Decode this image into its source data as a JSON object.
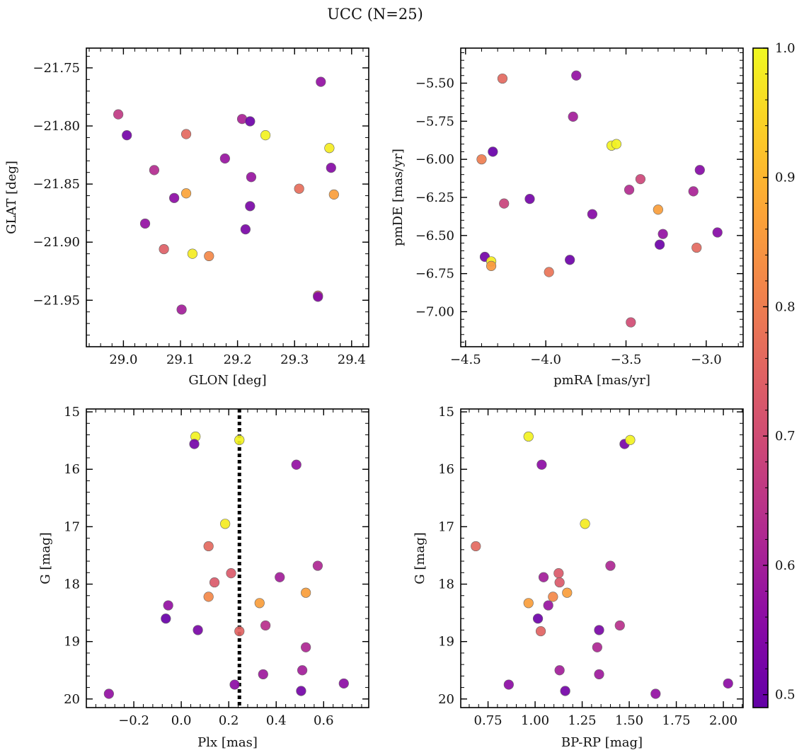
{
  "title": "UCC (N=25)",
  "colorbar": {
    "min": 0.49,
    "max": 1.0,
    "ticks": [
      "0.5",
      "0.6",
      "0.7",
      "0.8",
      "0.9",
      "1.0"
    ],
    "tick_values": [
      0.5,
      0.6,
      0.7,
      0.8,
      0.9,
      1.0
    ],
    "colormap": "plasma"
  },
  "chart_data": [
    {
      "type": "scatter",
      "id": "glon-glat",
      "xlabel": "GLON [deg]",
      "ylabel": "GLAT [deg]",
      "xlim": [
        28.935,
        29.43
      ],
      "ylim": [
        -21.99,
        -21.733
      ],
      "y_inverted": false,
      "xticks": [
        29.0,
        29.1,
        29.2,
        29.3,
        29.4
      ],
      "xtick_labels": [
        "29.0",
        "29.1",
        "29.2",
        "29.3",
        "29.4"
      ],
      "yticks": [
        -21.75,
        -21.8,
        -21.85,
        -21.9,
        -21.95
      ],
      "ytick_labels": [
        "−21.75",
        "−21.80",
        "−21.85",
        "−21.90",
        "−21.95"
      ],
      "points": [
        {
          "x": 28.991,
          "y": -21.79,
          "c": 0.66
        },
        {
          "x": 29.006,
          "y": -21.808,
          "c": 0.52
        },
        {
          "x": 29.054,
          "y": -21.838,
          "c": 0.63
        },
        {
          "x": 29.038,
          "y": -21.884,
          "c": 0.57
        },
        {
          "x": 29.071,
          "y": -21.906,
          "c": 0.74
        },
        {
          "x": 29.089,
          "y": -21.862,
          "c": 0.56
        },
        {
          "x": 29.102,
          "y": -21.958,
          "c": 0.6
        },
        {
          "x": 29.11,
          "y": -21.807,
          "c": 0.76
        },
        {
          "x": 29.11,
          "y": -21.858,
          "c": 0.87
        },
        {
          "x": 29.121,
          "y": -21.91,
          "c": 0.98
        },
        {
          "x": 29.15,
          "y": -21.912,
          "c": 0.82
        },
        {
          "x": 29.178,
          "y": -21.828,
          "c": 0.58
        },
        {
          "x": 29.208,
          "y": -21.794,
          "c": 0.61
        },
        {
          "x": 29.214,
          "y": -21.889,
          "c": 0.53
        },
        {
          "x": 29.222,
          "y": -21.796,
          "c": 0.51
        },
        {
          "x": 29.222,
          "y": -21.869,
          "c": 0.53
        },
        {
          "x": 29.224,
          "y": -21.844,
          "c": 0.58
        },
        {
          "x": 29.249,
          "y": -21.808,
          "c": 0.99
        },
        {
          "x": 29.308,
          "y": -21.854,
          "c": 0.77
        },
        {
          "x": 29.341,
          "y": -21.946,
          "c": 0.74
        },
        {
          "x": 29.341,
          "y": -21.947,
          "c": 0.55
        },
        {
          "x": 29.346,
          "y": -21.762,
          "c": 0.57
        },
        {
          "x": 29.361,
          "y": -21.819,
          "c": 0.98
        },
        {
          "x": 29.364,
          "y": -21.836,
          "c": 0.55
        },
        {
          "x": 29.369,
          "y": -21.859,
          "c": 0.86
        }
      ]
    },
    {
      "type": "scatter",
      "id": "pmra-pmde",
      "xlabel": "pmRA [mas/yr]",
      "ylabel": "pmDE [mas/yr]",
      "xlim": [
        -4.53,
        -2.77
      ],
      "ylim": [
        -7.23,
        -5.27
      ],
      "y_inverted": false,
      "xticks": [
        -4.5,
        -4.0,
        -3.5,
        -3.0
      ],
      "xtick_labels": [
        "−4.5",
        "−4.0",
        "−3.5",
        "−3.0"
      ],
      "yticks": [
        -5.5,
        -5.75,
        -6.0,
        -6.25,
        -6.5,
        -6.75,
        -7.0
      ],
      "ytick_labels": [
        "−5.50",
        "−5.75",
        "−6.00",
        "−6.25",
        "−6.50",
        "−6.75",
        "−7.00"
      ],
      "points": [
        {
          "x": -4.27,
          "y": -5.47,
          "c": 0.76
        },
        {
          "x": -3.81,
          "y": -5.45,
          "c": 0.57
        },
        {
          "x": -3.83,
          "y": -5.72,
          "c": 0.6
        },
        {
          "x": -4.33,
          "y": -5.95,
          "c": 0.5
        },
        {
          "x": -4.4,
          "y": -6.0,
          "c": 0.8
        },
        {
          "x": -3.59,
          "y": -5.91,
          "c": 0.99
        },
        {
          "x": -3.56,
          "y": -5.9,
          "c": 0.99
        },
        {
          "x": -3.41,
          "y": -6.13,
          "c": 0.69
        },
        {
          "x": -3.48,
          "y": -6.2,
          "c": 0.63
        },
        {
          "x": -3.04,
          "y": -6.07,
          "c": 0.55
        },
        {
          "x": -3.08,
          "y": -6.21,
          "c": 0.61
        },
        {
          "x": -4.1,
          "y": -6.26,
          "c": 0.52
        },
        {
          "x": -4.26,
          "y": -6.29,
          "c": 0.68
        },
        {
          "x": -3.71,
          "y": -6.36,
          "c": 0.55
        },
        {
          "x": -3.3,
          "y": -6.33,
          "c": 0.86
        },
        {
          "x": -3.27,
          "y": -6.49,
          "c": 0.57
        },
        {
          "x": -2.93,
          "y": -6.48,
          "c": 0.55
        },
        {
          "x": -3.29,
          "y": -6.56,
          "c": 0.51
        },
        {
          "x": -3.06,
          "y": -6.58,
          "c": 0.76
        },
        {
          "x": -4.38,
          "y": -6.64,
          "c": 0.52
        },
        {
          "x": -4.34,
          "y": -6.67,
          "c": 0.98
        },
        {
          "x": -4.34,
          "y": -6.7,
          "c": 0.85
        },
        {
          "x": -3.85,
          "y": -6.66,
          "c": 0.51
        },
        {
          "x": -3.98,
          "y": -6.74,
          "c": 0.78
        },
        {
          "x": -3.47,
          "y": -7.07,
          "c": 0.7
        }
      ]
    },
    {
      "type": "scatter",
      "id": "plx-g",
      "xlabel": "Plx [mas]",
      "ylabel": "G [mag]",
      "xlim": [
        -0.4,
        0.79
      ],
      "ylim": [
        14.95,
        20.15
      ],
      "y_inverted": true,
      "vline": 0.245,
      "xticks": [
        -0.2,
        0.0,
        0.2,
        0.4,
        0.6
      ],
      "xtick_labels": [
        "−0.2",
        "0.0",
        "0.2",
        "0.4",
        "0.6"
      ],
      "yticks": [
        15,
        16,
        17,
        18,
        19,
        20
      ],
      "ytick_labels": [
        "15",
        "16",
        "17",
        "18",
        "19",
        "20"
      ],
      "points": [
        {
          "x": 0.06,
          "y": 15.43,
          "c": 0.99
        },
        {
          "x": 0.055,
          "y": 15.56,
          "c": 0.52
        },
        {
          "x": 0.245,
          "y": 15.49,
          "c": 0.99
        },
        {
          "x": 0.485,
          "y": 15.92,
          "c": 0.57
        },
        {
          "x": 0.185,
          "y": 16.95,
          "c": 0.98
        },
        {
          "x": 0.115,
          "y": 17.34,
          "c": 0.76
        },
        {
          "x": 0.575,
          "y": 17.68,
          "c": 0.62
        },
        {
          "x": 0.21,
          "y": 17.81,
          "c": 0.73
        },
        {
          "x": 0.14,
          "y": 17.97,
          "c": 0.73
        },
        {
          "x": 0.415,
          "y": 17.88,
          "c": 0.6
        },
        {
          "x": 0.525,
          "y": 18.15,
          "c": 0.86
        },
        {
          "x": 0.115,
          "y": 18.22,
          "c": 0.82
        },
        {
          "x": 0.33,
          "y": 18.33,
          "c": 0.86
        },
        {
          "x": -0.055,
          "y": 18.37,
          "c": 0.57
        },
        {
          "x": -0.065,
          "y": 18.6,
          "c": 0.5
        },
        {
          "x": 0.355,
          "y": 18.72,
          "c": 0.64
        },
        {
          "x": 0.07,
          "y": 18.8,
          "c": 0.53
        },
        {
          "x": 0.245,
          "y": 18.82,
          "c": 0.75
        },
        {
          "x": 0.525,
          "y": 19.1,
          "c": 0.62
        },
        {
          "x": 0.51,
          "y": 19.5,
          "c": 0.6
        },
        {
          "x": 0.345,
          "y": 19.57,
          "c": 0.59
        },
        {
          "x": 0.225,
          "y": 19.75,
          "c": 0.56
        },
        {
          "x": 0.685,
          "y": 19.73,
          "c": 0.56
        },
        {
          "x": 0.505,
          "y": 19.86,
          "c": 0.52
        },
        {
          "x": -0.305,
          "y": 19.91,
          "c": 0.57
        }
      ]
    },
    {
      "type": "scatter",
      "id": "bprp-g",
      "xlabel": "BP-RP [mag]",
      "ylabel": "G [mag]",
      "xlim": [
        0.605,
        2.105
      ],
      "ylim": [
        14.95,
        20.15
      ],
      "y_inverted": true,
      "xticks": [
        0.75,
        1.0,
        1.25,
        1.5,
        1.75,
        2.0
      ],
      "xtick_labels": [
        "0.75",
        "1.00",
        "1.25",
        "1.50",
        "1.75",
        "2.00"
      ],
      "yticks": [
        15,
        16,
        17,
        18,
        19,
        20
      ],
      "ytick_labels": [
        "15",
        "16",
        "17",
        "18",
        "19",
        "20"
      ],
      "points": [
        {
          "x": 0.965,
          "y": 15.43,
          "c": 0.99
        },
        {
          "x": 1.475,
          "y": 15.56,
          "c": 0.53
        },
        {
          "x": 1.505,
          "y": 15.49,
          "c": 0.99
        },
        {
          "x": 1.035,
          "y": 15.92,
          "c": 0.56
        },
        {
          "x": 1.265,
          "y": 16.95,
          "c": 0.98
        },
        {
          "x": 0.685,
          "y": 17.34,
          "c": 0.76
        },
        {
          "x": 1.4,
          "y": 17.68,
          "c": 0.62
        },
        {
          "x": 1.125,
          "y": 17.81,
          "c": 0.73
        },
        {
          "x": 1.13,
          "y": 17.97,
          "c": 0.73
        },
        {
          "x": 1.045,
          "y": 17.88,
          "c": 0.6
        },
        {
          "x": 1.17,
          "y": 18.15,
          "c": 0.86
        },
        {
          "x": 1.095,
          "y": 18.22,
          "c": 0.82
        },
        {
          "x": 0.965,
          "y": 18.33,
          "c": 0.86
        },
        {
          "x": 1.07,
          "y": 18.37,
          "c": 0.58
        },
        {
          "x": 1.015,
          "y": 18.6,
          "c": 0.51
        },
        {
          "x": 1.45,
          "y": 18.72,
          "c": 0.64
        },
        {
          "x": 1.34,
          "y": 18.8,
          "c": 0.53
        },
        {
          "x": 1.03,
          "y": 18.82,
          "c": 0.75
        },
        {
          "x": 1.33,
          "y": 19.1,
          "c": 0.62
        },
        {
          "x": 1.13,
          "y": 19.5,
          "c": 0.6
        },
        {
          "x": 1.34,
          "y": 19.57,
          "c": 0.59
        },
        {
          "x": 0.86,
          "y": 19.75,
          "c": 0.56
        },
        {
          "x": 2.025,
          "y": 19.73,
          "c": 0.56
        },
        {
          "x": 1.16,
          "y": 19.86,
          "c": 0.52
        },
        {
          "x": 1.64,
          "y": 19.91,
          "c": 0.57
        }
      ]
    }
  ]
}
